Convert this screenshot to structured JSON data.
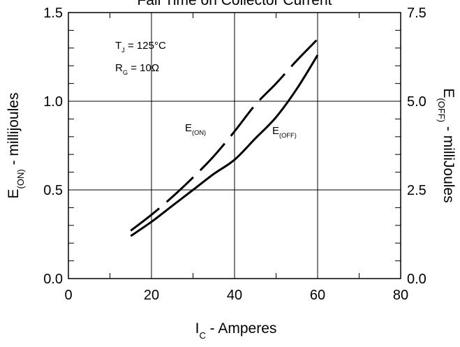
{
  "chart_data": {
    "type": "line",
    "title": "Fall Time on Collector Current",
    "xlabel": {
      "main": "I",
      "sub": "C",
      "rest": " - Amperes"
    },
    "ylabel_left": {
      "main": "E",
      "sub": "(ON)",
      "rest": " - millijoules"
    },
    "ylabel_right": {
      "main": "E",
      "sub": "(OFF)",
      "rest": " - milliJoules"
    },
    "xlim": [
      0,
      80
    ],
    "ylim_left": [
      0,
      1.5
    ],
    "ylim_right": [
      0,
      7.5
    ],
    "x_ticks": [
      0,
      20,
      40,
      60,
      80
    ],
    "x_tick_labels": [
      "0",
      "20",
      "40",
      "60",
      "80"
    ],
    "y_left_ticks": [
      0,
      0.5,
      1.0,
      1.5
    ],
    "y_left_tick_labels": [
      "0.0",
      "0.5",
      "1.0",
      "1.5"
    ],
    "y_right_ticks": [
      0,
      2.5,
      5.0,
      7.5
    ],
    "y_right_tick_labels": [
      "0.0",
      "2.5",
      "5.0",
      "7.5"
    ],
    "grid": true,
    "conditions": [
      {
        "main": "T",
        "sub": "J",
        "rest": " = 125°C"
      },
      {
        "main": "R",
        "sub": "G",
        "rest": " = 10Ω"
      }
    ],
    "series": [
      {
        "name": "E(ON)",
        "label": {
          "main": "E",
          "sub": "(ON)"
        },
        "axis": "left",
        "style": "dashed",
        "x": [
          15,
          20,
          25,
          30,
          35,
          40,
          45,
          50,
          55,
          60
        ],
        "y": [
          0.27,
          0.36,
          0.46,
          0.57,
          0.69,
          0.83,
          0.98,
          1.1,
          1.23,
          1.35
        ]
      },
      {
        "name": "E(OFF)",
        "label": {
          "main": "E",
          "sub": "(OFF)"
        },
        "axis": "right",
        "style": "solid",
        "x": [
          15,
          20,
          25,
          30,
          35,
          40,
          45,
          50,
          55,
          60
        ],
        "y": [
          1.2,
          1.6,
          2.05,
          2.5,
          2.95,
          3.35,
          3.95,
          4.55,
          5.35,
          6.3
        ]
      }
    ]
  }
}
